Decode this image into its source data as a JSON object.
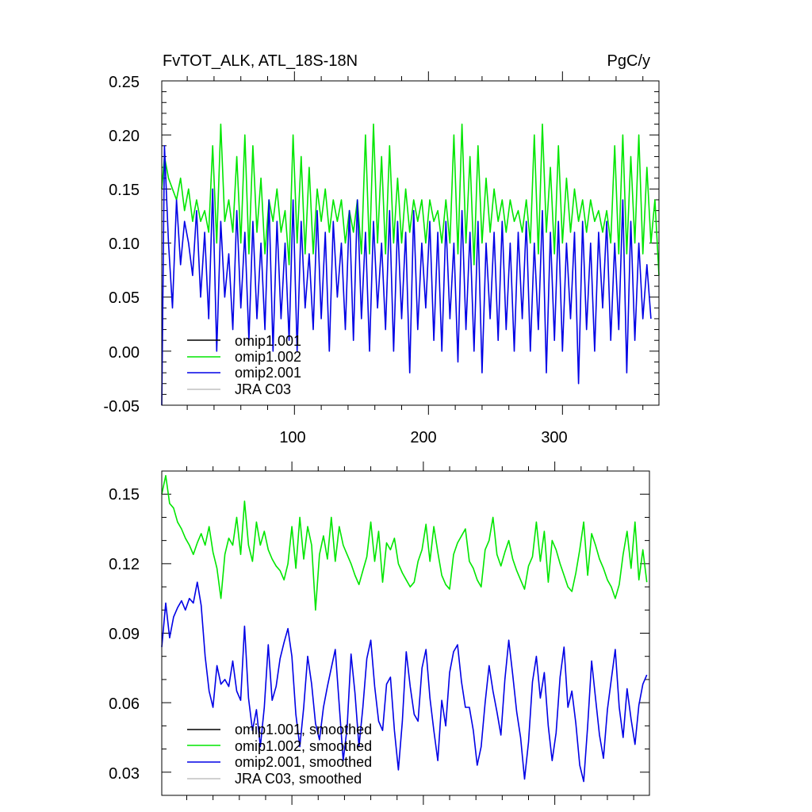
{
  "chart_data": [
    {
      "type": "line",
      "title": "FvTOT_ALK, ATL_18S-18N",
      "units": "PgC/y",
      "xlabel": "",
      "ylabel": "",
      "xlim": [
        1,
        372
      ],
      "ylim": [
        -0.05,
        0.25
      ],
      "yticks": [
        "0.25",
        "0.20",
        "0.15",
        "0.10",
        "0.05",
        "0.00",
        "-0.05"
      ],
      "xticks": [
        "100",
        "200",
        "300"
      ],
      "legend": [
        "omip1.001",
        "omip1.002",
        "omip2.001",
        "JRA C03"
      ],
      "legend_colors": [
        "#000000",
        "#00e600",
        "#0000e6",
        "#c0c0c0"
      ],
      "series": [
        {
          "name": "omip1.002",
          "color": "#00e600",
          "x": [
            1,
            3,
            6,
            9,
            12,
            15,
            18,
            21,
            24,
            27,
            30,
            33,
            36,
            39,
            42,
            45,
            48,
            51,
            54,
            57,
            60,
            63,
            66,
            69,
            72,
            75,
            78,
            81,
            84,
            87,
            90,
            93,
            96,
            99,
            102,
            105,
            108,
            111,
            114,
            117,
            120,
            123,
            126,
            129,
            132,
            135,
            138,
            141,
            144,
            147,
            150,
            153,
            156,
            159,
            162,
            165,
            168,
            171,
            174,
            177,
            180,
            183,
            186,
            189,
            192,
            195,
            198,
            201,
            204,
            207,
            210,
            213,
            216,
            219,
            222,
            225,
            228,
            231,
            234,
            237,
            240,
            243,
            246,
            249,
            252,
            255,
            258,
            261,
            264,
            267,
            270,
            273,
            276,
            279,
            282,
            285,
            288,
            291,
            294,
            297,
            300,
            303,
            306,
            309,
            312,
            315,
            318,
            321,
            324,
            327,
            330,
            333,
            336,
            339,
            342,
            345,
            348,
            351,
            354,
            357,
            360,
            363,
            366,
            369,
            372
          ],
          "values": [
            0.15,
            0.18,
            0.16,
            0.15,
            0.14,
            0.16,
            0.13,
            0.15,
            0.12,
            0.14,
            0.12,
            0.13,
            0.11,
            0.19,
            0.1,
            0.21,
            0.12,
            0.14,
            0.11,
            0.18,
            0.1,
            0.2,
            0.09,
            0.19,
            0.11,
            0.16,
            0.09,
            0.14,
            0.12,
            0.15,
            0.11,
            0.13,
            0.08,
            0.2,
            0.1,
            0.18,
            0.09,
            0.17,
            0.09,
            0.15,
            0.12,
            0.15,
            0.11,
            0.14,
            0.12,
            0.14,
            0.1,
            0.13,
            0.11,
            0.14,
            0.09,
            0.2,
            0.09,
            0.21,
            0.1,
            0.18,
            0.09,
            0.19,
            0.1,
            0.16,
            0.1,
            0.15,
            0.11,
            0.14,
            0.12,
            0.14,
            0.1,
            0.14,
            0.12,
            0.13,
            0.1,
            0.14,
            0.1,
            0.2,
            0.09,
            0.21,
            0.1,
            0.18,
            0.08,
            0.19,
            0.1,
            0.16,
            0.11,
            0.15,
            0.12,
            0.14,
            0.11,
            0.14,
            0.12,
            0.13,
            0.11,
            0.14,
            0.1,
            0.2,
            0.09,
            0.21,
            0.11,
            0.17,
            0.09,
            0.19,
            0.1,
            0.16,
            0.11,
            0.15,
            0.12,
            0.14,
            0.11,
            0.14,
            0.12,
            0.13,
            0.11,
            0.13,
            0.1,
            0.19,
            0.09,
            0.2,
            0.09,
            0.18,
            0.1,
            0.2,
            0.09,
            0.17,
            0.1,
            0.14,
            0.07
          ]
        },
        {
          "name": "omip2.001",
          "color": "#0000e6",
          "x": [
            1,
            3,
            6,
            9,
            12,
            15,
            18,
            21,
            24,
            27,
            30,
            33,
            36,
            39,
            42,
            45,
            48,
            51,
            54,
            57,
            60,
            63,
            66,
            69,
            72,
            75,
            78,
            81,
            84,
            87,
            90,
            93,
            96,
            99,
            102,
            105,
            108,
            111,
            114,
            117,
            120,
            123,
            126,
            129,
            132,
            135,
            138,
            141,
            144,
            147,
            150,
            153,
            156,
            159,
            162,
            165,
            168,
            171,
            174,
            177,
            180,
            183,
            186,
            189,
            192,
            195,
            198,
            201,
            204,
            207,
            210,
            213,
            216,
            219,
            222,
            225,
            228,
            231,
            234,
            237,
            240,
            243,
            246,
            249,
            252,
            255,
            258,
            261,
            264,
            267,
            270,
            273,
            276,
            279,
            282,
            285,
            288,
            291,
            294,
            297,
            300,
            303,
            306,
            309,
            312,
            315,
            318,
            321,
            324,
            327,
            330,
            333,
            336,
            339,
            342,
            345,
            348,
            351,
            354,
            357,
            360,
            363,
            366
          ],
          "values": [
            -0.05,
            0.19,
            0.1,
            0.04,
            0.14,
            0.08,
            0.12,
            0.1,
            0.07,
            0.13,
            0.05,
            0.11,
            0.03,
            0.15,
            0.0,
            0.12,
            0.05,
            0.09,
            0.02,
            0.13,
            0.04,
            0.11,
            0.01,
            0.12,
            0.03,
            0.1,
            0.02,
            0.14,
            0.0,
            0.12,
            0.03,
            0.1,
            0.01,
            0.14,
            0.0,
            0.12,
            0.04,
            0.09,
            0.02,
            0.13,
            0.03,
            0.11,
            0.0,
            0.12,
            0.05,
            0.1,
            0.02,
            0.13,
            0.01,
            0.14,
            0.03,
            0.11,
            0.0,
            0.12,
            0.04,
            0.1,
            0.02,
            0.13,
            0.0,
            0.12,
            0.03,
            0.11,
            -0.02,
            0.13,
            0.02,
            0.1,
            0.04,
            0.12,
            0.01,
            0.11,
            0.0,
            0.12,
            0.03,
            0.1,
            -0.01,
            0.13,
            0.02,
            0.11,
            0.0,
            0.12,
            -0.02,
            0.1,
            0.03,
            0.11,
            0.01,
            0.12,
            0.02,
            0.1,
            0.0,
            0.11,
            0.03,
            0.12,
            0.0,
            0.1,
            0.02,
            0.13,
            -0.02,
            0.11,
            0.01,
            0.12,
            0.0,
            0.1,
            0.03,
            0.11,
            -0.03,
            0.12,
            0.02,
            0.1,
            0.0,
            0.11,
            0.04,
            0.12,
            0.01,
            0.1,
            0.02,
            0.14,
            -0.02,
            0.12,
            0.01,
            0.1,
            0.03,
            0.08,
            0.03
          ]
        }
      ]
    },
    {
      "type": "line",
      "title": "",
      "xlabel": "",
      "ylabel": "",
      "xlim": [
        1,
        372
      ],
      "ylim": [
        0.02,
        0.16
      ],
      "yticks": [
        "0.15",
        "0.12",
        "0.09",
        "0.06",
        "0.03"
      ],
      "legend": [
        "omip1.001, smoothed",
        "omip1.002, smoothed",
        "omip2.001, smoothed",
        "JRA C03, smoothed"
      ],
      "legend_colors": [
        "#000000",
        "#00e600",
        "#0000e6",
        "#c0c0c0"
      ],
      "series": [
        {
          "name": "omip1.002, smoothed",
          "color": "#00e600",
          "x": [
            1,
            4,
            7,
            10,
            13,
            16,
            19,
            22,
            25,
            28,
            31,
            34,
            37,
            40,
            43,
            46,
            49,
            52,
            55,
            58,
            61,
            64,
            67,
            70,
            73,
            76,
            79,
            82,
            85,
            88,
            91,
            94,
            97,
            100,
            103,
            106,
            109,
            112,
            115,
            118,
            121,
            124,
            127,
            130,
            133,
            136,
            139,
            142,
            145,
            148,
            151,
            154,
            157,
            160,
            163,
            166,
            169,
            172,
            175,
            178,
            181,
            184,
            187,
            190,
            193,
            196,
            199,
            202,
            205,
            208,
            211,
            214,
            217,
            220,
            223,
            226,
            229,
            232,
            235,
            238,
            241,
            244,
            247,
            250,
            253,
            256,
            259,
            262,
            265,
            268,
            271,
            274,
            277,
            280,
            283,
            286,
            289,
            292,
            295,
            298,
            301,
            304,
            307,
            310,
            313,
            316,
            319,
            322,
            325,
            328,
            331,
            334,
            337,
            340,
            343,
            346,
            349,
            352,
            355,
            358,
            361,
            364,
            367,
            370
          ],
          "values": [
            0.15,
            0.158,
            0.146,
            0.144,
            0.138,
            0.135,
            0.131,
            0.128,
            0.124,
            0.129,
            0.133,
            0.128,
            0.136,
            0.125,
            0.118,
            0.105,
            0.124,
            0.131,
            0.128,
            0.14,
            0.124,
            0.147,
            0.128,
            0.121,
            0.138,
            0.128,
            0.134,
            0.126,
            0.122,
            0.119,
            0.117,
            0.113,
            0.12,
            0.136,
            0.118,
            0.14,
            0.122,
            0.136,
            0.128,
            0.1,
            0.124,
            0.132,
            0.122,
            0.14,
            0.121,
            0.136,
            0.128,
            0.124,
            0.12,
            0.115,
            0.111,
            0.117,
            0.123,
            0.138,
            0.121,
            0.134,
            0.112,
            0.129,
            0.126,
            0.131,
            0.12,
            0.116,
            0.113,
            0.11,
            0.112,
            0.121,
            0.126,
            0.137,
            0.121,
            0.136,
            0.125,
            0.115,
            0.111,
            0.109,
            0.124,
            0.129,
            0.132,
            0.135,
            0.121,
            0.118,
            0.113,
            0.11,
            0.126,
            0.13,
            0.14,
            0.124,
            0.119,
            0.125,
            0.13,
            0.122,
            0.117,
            0.113,
            0.109,
            0.119,
            0.123,
            0.138,
            0.121,
            0.134,
            0.112,
            0.13,
            0.126,
            0.12,
            0.115,
            0.11,
            0.108,
            0.116,
            0.126,
            0.138,
            0.115,
            0.133,
            0.128,
            0.122,
            0.118,
            0.113,
            0.11,
            0.105,
            0.111,
            0.124,
            0.134,
            0.118,
            0.138,
            0.113,
            0.126,
            0.112
          ]
        },
        {
          "name": "omip2.001, smoothed",
          "color": "#0000e6",
          "x": [
            1,
            4,
            7,
            10,
            13,
            16,
            19,
            22,
            25,
            28,
            31,
            34,
            37,
            40,
            43,
            46,
            49,
            52,
            55,
            58,
            61,
            64,
            67,
            70,
            73,
            76,
            79,
            82,
            85,
            88,
            91,
            94,
            97,
            100,
            103,
            106,
            109,
            112,
            115,
            118,
            121,
            124,
            127,
            130,
            133,
            136,
            139,
            142,
            145,
            148,
            151,
            154,
            157,
            160,
            163,
            166,
            169,
            172,
            175,
            178,
            181,
            184,
            187,
            190,
            193,
            196,
            199,
            202,
            205,
            208,
            211,
            214,
            217,
            220,
            223,
            226,
            229,
            232,
            235,
            238,
            241,
            244,
            247,
            250,
            253,
            256,
            259,
            262,
            265,
            268,
            271,
            274,
            277,
            280,
            283,
            286,
            289,
            292,
            295,
            298,
            301,
            304,
            307,
            310,
            313,
            316,
            319,
            322,
            325,
            328,
            331,
            334,
            337,
            340,
            343,
            346,
            349,
            352,
            355,
            358,
            361,
            364,
            367,
            370
          ],
          "values": [
            0.084,
            0.103,
            0.088,
            0.097,
            0.101,
            0.104,
            0.1,
            0.105,
            0.103,
            0.112,
            0.102,
            0.08,
            0.065,
            0.058,
            0.076,
            0.068,
            0.07,
            0.067,
            0.078,
            0.065,
            0.061,
            0.093,
            0.062,
            0.048,
            0.057,
            0.041,
            0.058,
            0.085,
            0.061,
            0.067,
            0.079,
            0.086,
            0.092,
            0.08,
            0.055,
            0.041,
            0.058,
            0.08,
            0.068,
            0.051,
            0.044,
            0.058,
            0.067,
            0.075,
            0.083,
            0.059,
            0.035,
            0.049,
            0.081,
            0.064,
            0.041,
            0.058,
            0.079,
            0.087,
            0.067,
            0.052,
            0.048,
            0.068,
            0.071,
            0.048,
            0.031,
            0.052,
            0.082,
            0.067,
            0.055,
            0.052,
            0.075,
            0.083,
            0.062,
            0.048,
            0.035,
            0.061,
            0.05,
            0.073,
            0.082,
            0.085,
            0.069,
            0.058,
            0.058,
            0.048,
            0.033,
            0.041,
            0.06,
            0.076,
            0.065,
            0.056,
            0.046,
            0.07,
            0.087,
            0.072,
            0.056,
            0.045,
            0.027,
            0.043,
            0.069,
            0.08,
            0.062,
            0.073,
            0.05,
            0.035,
            0.047,
            0.071,
            0.084,
            0.058,
            0.065,
            0.051,
            0.033,
            0.026,
            0.05,
            0.078,
            0.062,
            0.046,
            0.036,
            0.057,
            0.07,
            0.083,
            0.058,
            0.045,
            0.066,
            0.053,
            0.042,
            0.059,
            0.068,
            0.072
          ]
        }
      ]
    }
  ]
}
